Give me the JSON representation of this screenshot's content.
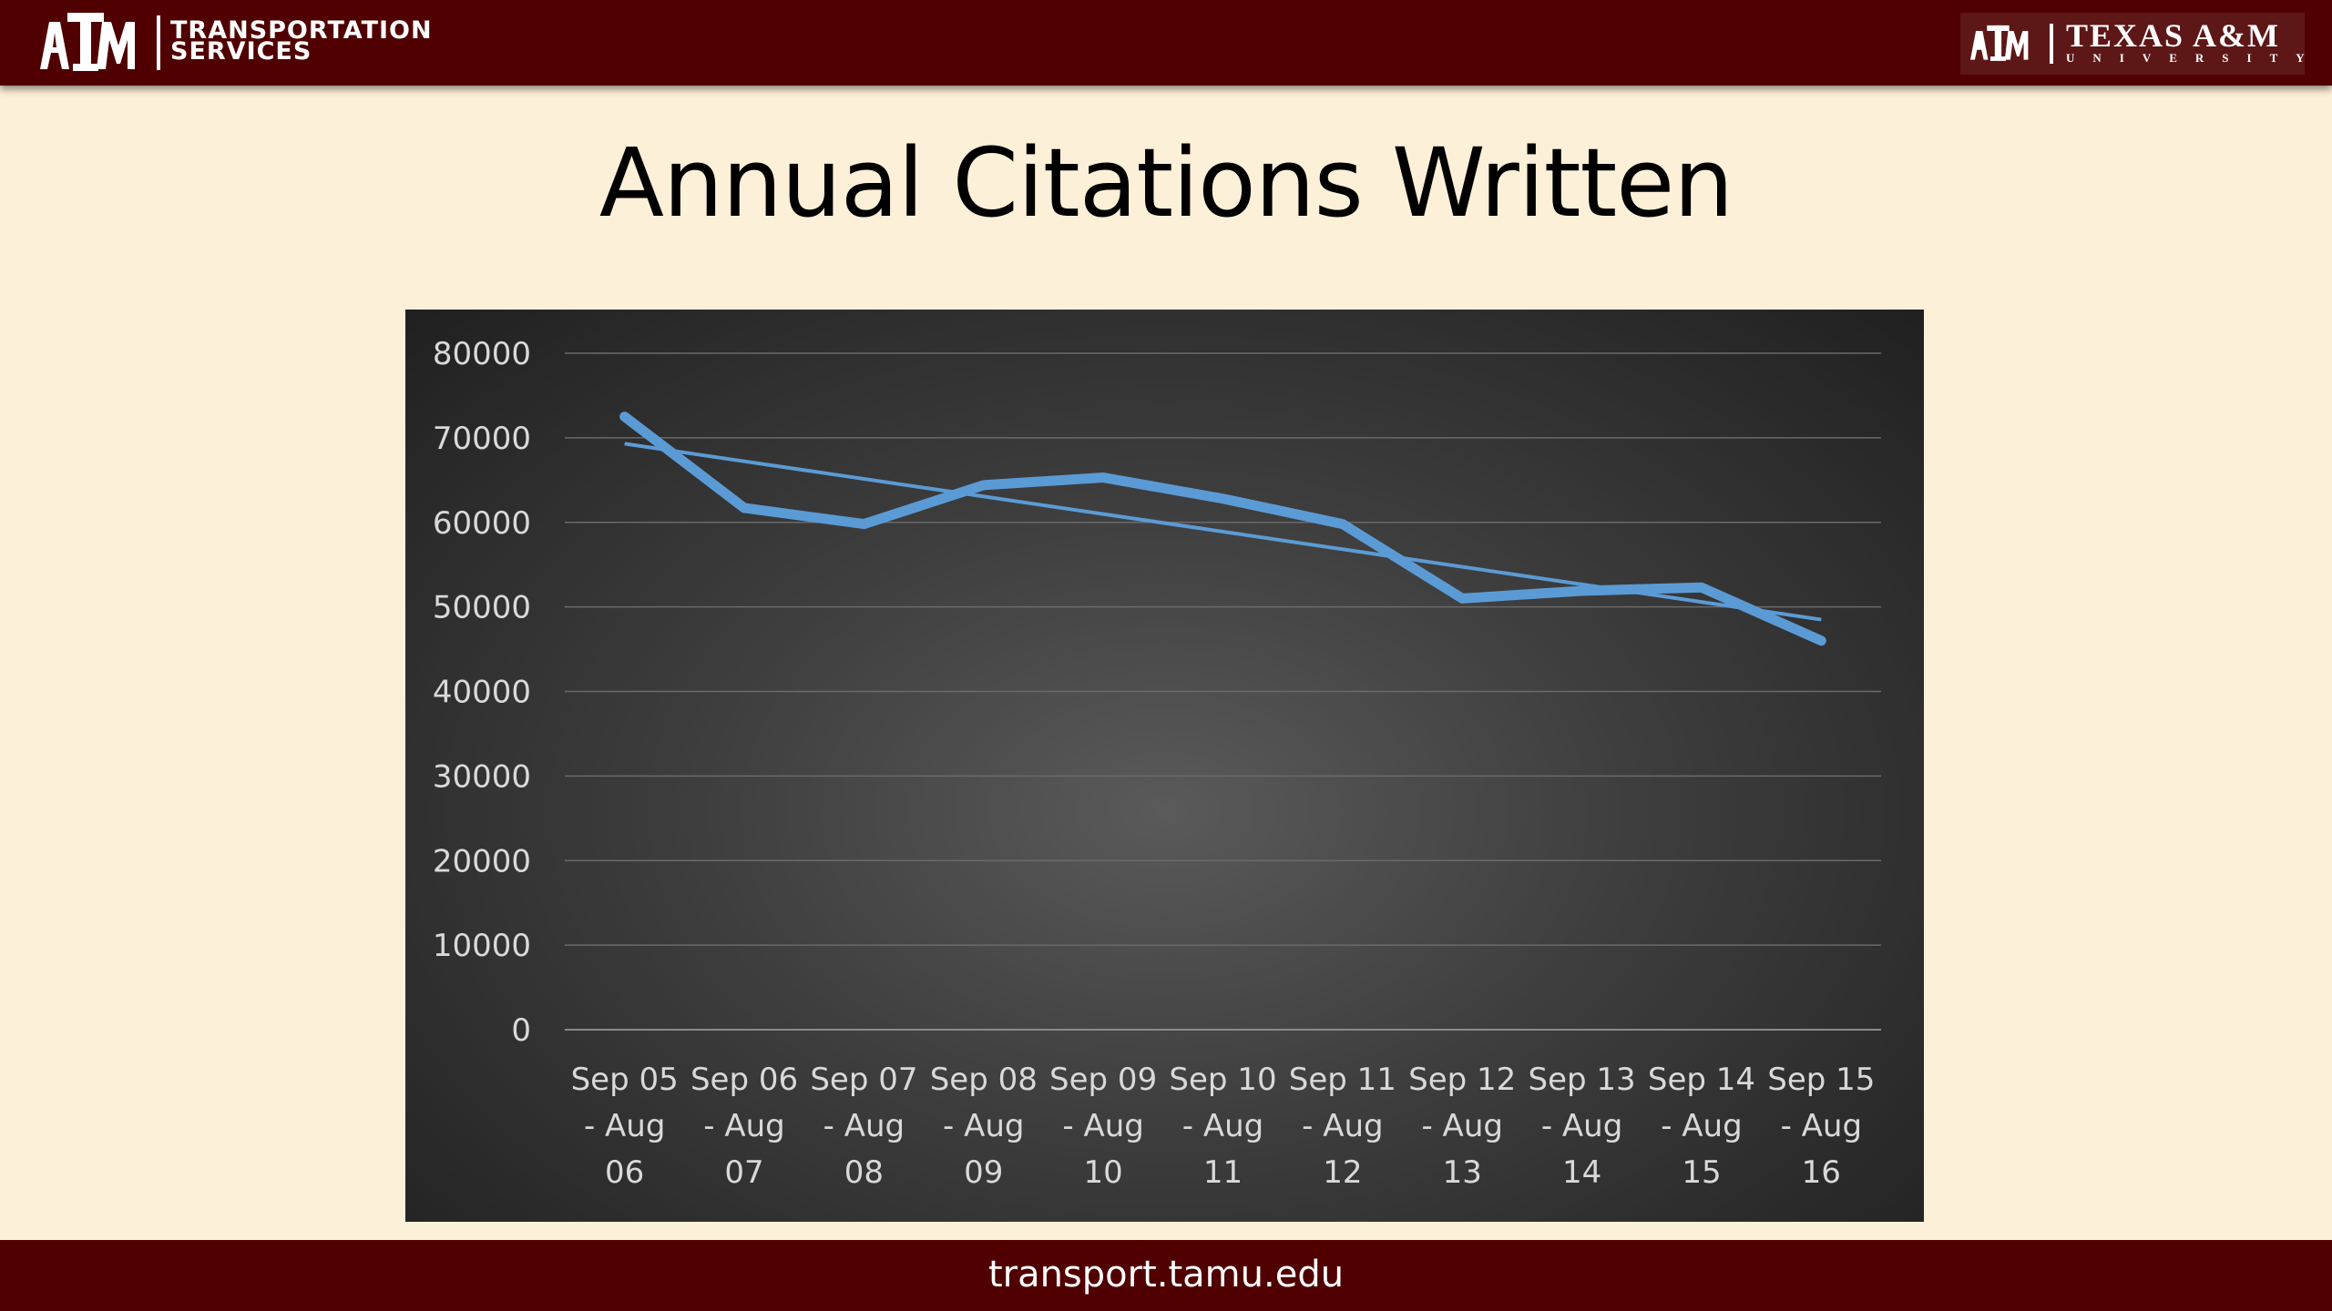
{
  "header": {
    "left_logo_icon": "atm-logo-icon",
    "left_title": "TRANSPORTATION",
    "left_subtitle": "SERVICES",
    "right_logo_icon": "atm-logo-icon",
    "right_title": "TEXAS A&M",
    "right_subtitle": "UNIVERSITY"
  },
  "slide": {
    "title": "Annual Citations Written"
  },
  "footer": {
    "url": "transport.tamu.edu"
  },
  "colors": {
    "maroon": "#500000",
    "slide_bg": "#fdf0d8",
    "series": "#5b9bd5",
    "trendline": "#5b9bd5"
  },
  "chart_data": {
    "type": "line",
    "title": "",
    "xlabel": "",
    "ylabel": "",
    "ylim": [
      0,
      80000
    ],
    "yticks": [
      "0",
      "10000",
      "20000",
      "30000",
      "40000",
      "50000",
      "60000",
      "70000",
      "80000"
    ],
    "categories": [
      [
        "Sep 05",
        "- Aug",
        "06"
      ],
      [
        "Sep 06",
        "- Aug",
        "07"
      ],
      [
        "Sep 07",
        "- Aug",
        "08"
      ],
      [
        "Sep 08",
        "- Aug",
        "09"
      ],
      [
        "Sep 09",
        "- Aug",
        "10"
      ],
      [
        "Sep 10",
        "- Aug",
        "11"
      ],
      [
        "Sep 11",
        "- Aug",
        "12"
      ],
      [
        "Sep 12",
        "- Aug",
        "13"
      ],
      [
        "Sep 13",
        "- Aug",
        "14"
      ],
      [
        "Sep 14",
        "- Aug",
        "15"
      ],
      [
        "Sep 15",
        "- Aug",
        "16"
      ]
    ],
    "series": [
      {
        "values": [
          72500,
          61700,
          59800,
          64400,
          65300,
          62800,
          59800,
          51000,
          51900,
          52300,
          46000
        ]
      }
    ],
    "trendline": {
      "type": "linear",
      "start": 69300,
      "end": 48500
    },
    "grid": true,
    "legend": "none"
  }
}
